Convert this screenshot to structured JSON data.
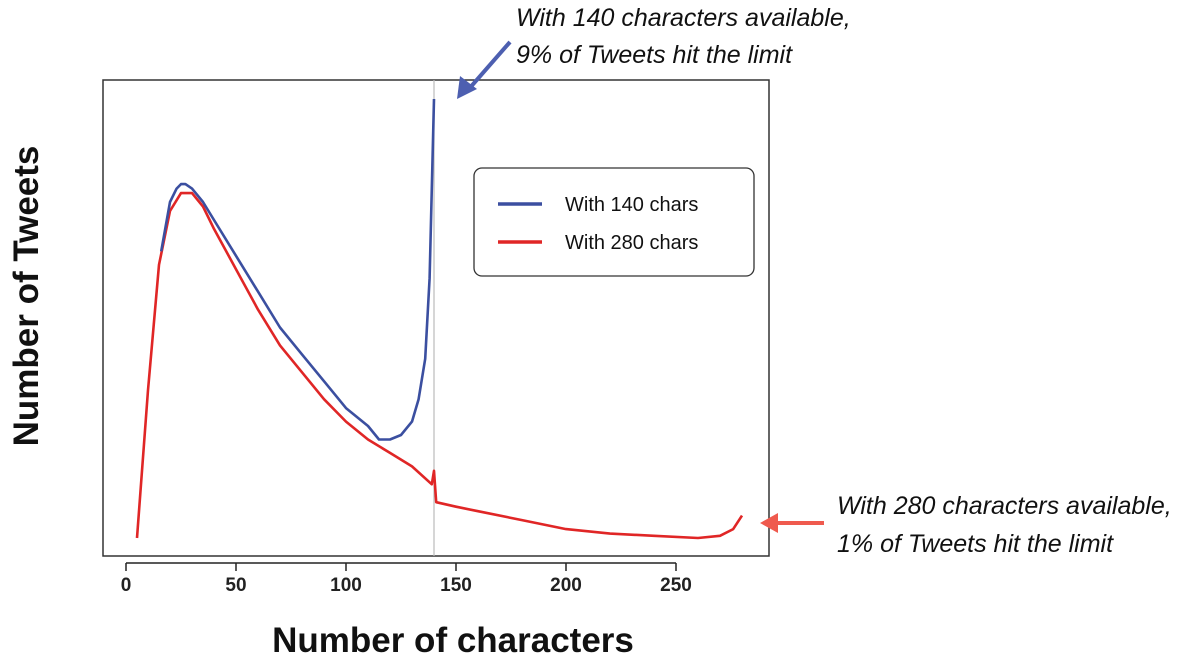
{
  "chart_data": {
    "type": "line",
    "title": "",
    "xlabel": "Number of characters",
    "ylabel": "Number of Tweets",
    "xlim": [
      -10,
      295
    ],
    "ylim": [
      0,
      1.05
    ],
    "x_ticks": [
      "0",
      "50",
      "100",
      "150",
      "200",
      "250"
    ],
    "y_ticks_shown": false,
    "grid": false,
    "legend_position": "top-right",
    "reference_line_x": 140,
    "series": [
      {
        "name": "With 140 chars",
        "color": "#3b4fa0",
        "x": [
          16,
          20,
          23,
          25,
          27,
          30,
          35,
          40,
          50,
          60,
          70,
          80,
          90,
          100,
          110,
          115,
          120,
          125,
          130,
          133,
          136,
          138,
          139,
          140
        ],
        "y": [
          0.66,
          0.77,
          0.8,
          0.81,
          0.81,
          0.8,
          0.77,
          0.73,
          0.65,
          0.57,
          0.49,
          0.43,
          0.37,
          0.31,
          0.27,
          0.24,
          0.24,
          0.25,
          0.28,
          0.33,
          0.42,
          0.6,
          0.8,
          1.0
        ]
      },
      {
        "name": "With 280 chars",
        "color": "#e02626",
        "x": [
          5,
          10,
          15,
          20,
          25,
          30,
          35,
          40,
          50,
          60,
          70,
          80,
          90,
          100,
          110,
          120,
          130,
          139,
          140,
          141,
          150,
          160,
          180,
          200,
          220,
          240,
          260,
          270,
          276,
          280
        ],
        "y": [
          0.02,
          0.35,
          0.63,
          0.75,
          0.79,
          0.79,
          0.76,
          0.71,
          0.62,
          0.53,
          0.45,
          0.39,
          0.33,
          0.28,
          0.24,
          0.21,
          0.18,
          0.14,
          0.17,
          0.1,
          0.09,
          0.08,
          0.06,
          0.04,
          0.03,
          0.025,
          0.02,
          0.025,
          0.04,
          0.07
        ]
      }
    ],
    "annotations": [
      {
        "line1": "With 140 characters available,",
        "line2": "9% of Tweets hit the limit",
        "color": "#4d5fb0"
      },
      {
        "line1": "With 280 characters available,",
        "line2": "1% of Tweets hit the limit",
        "color": "#ef5a4e"
      }
    ]
  }
}
